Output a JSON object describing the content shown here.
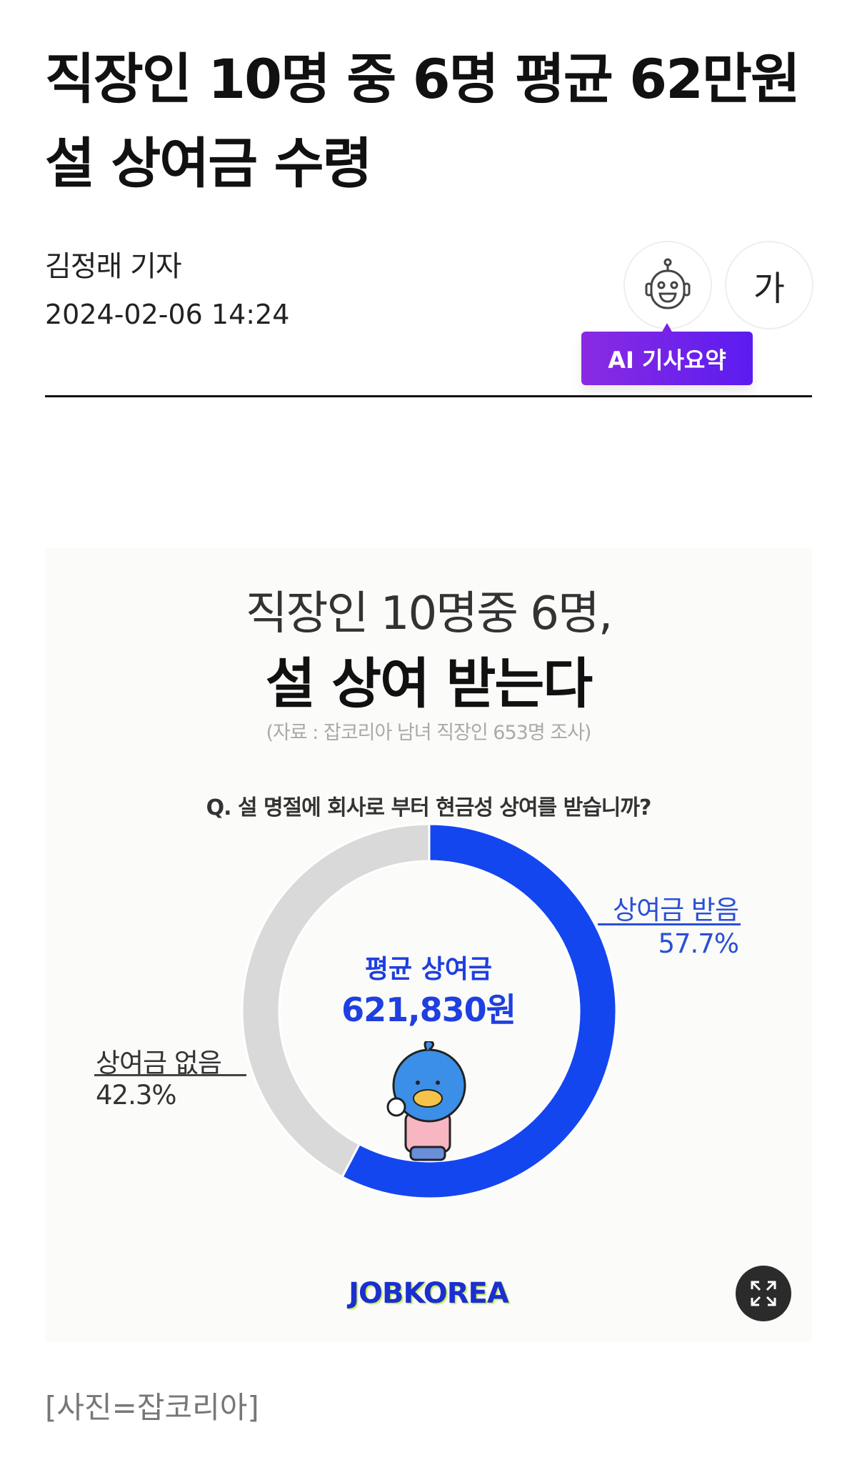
{
  "article": {
    "title": "직장인 10명 중 6명 평균 62만원 설 상여금 수령",
    "author": "김정래 기자",
    "datetime": "2024-02-06 14:24",
    "font_size_button": "가",
    "ai_summary_label": "AI 기사요약",
    "caption": "[사진=잡코리아]"
  },
  "figure": {
    "headline_1": "직장인 10명중 6명,",
    "headline_2": "설 상여 받는다",
    "source": "(자료 : 잡코리아 남녀 직장인 653명 조사)",
    "question": "Q. 설 명절에 회사로 부터 현금성 상여를 받습니까?",
    "center_label": "평균 상여금",
    "center_value": "621,830원",
    "logo": "JOBKOREA"
  },
  "chart_data": {
    "type": "pie",
    "variant": "donut",
    "start": "top, clockwise",
    "slices": [
      {
        "label": "상여금 받음",
        "value": 57.7,
        "value_label": "57.7%",
        "color": "#1446f0"
      },
      {
        "label": "상여금 없음",
        "value": 42.3,
        "value_label": "42.3%",
        "color": "#d9d9d9"
      }
    ]
  },
  "icons": {
    "robot": "robot-icon",
    "expand": "expand-icon"
  }
}
